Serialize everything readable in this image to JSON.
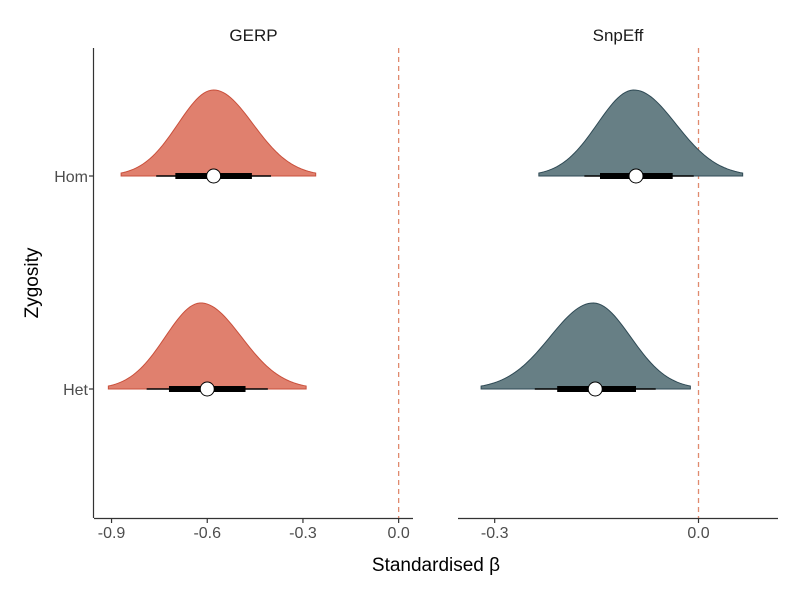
{
  "chart_data": {
    "type": "halfeye",
    "xlabel": "Standardised β",
    "ylabel": "Zygosity",
    "categories": [
      "Hom",
      "Het"
    ],
    "reference_line": {
      "x": 0.0,
      "style": "dashed",
      "color": "#e08a6e"
    },
    "grid": false,
    "legend": "none",
    "panels": [
      {
        "title": "GERP",
        "fill": "#e0806e",
        "stroke": "#c9503c",
        "xlim": [
          -0.955,
          0.045
        ],
        "xticks": [
          {
            "value": -0.9,
            "label": "-0.9"
          },
          {
            "value": -0.6,
            "label": "-0.6"
          },
          {
            "value": -0.3,
            "label": "-0.3"
          },
          {
            "value": 0.0,
            "label": "0.0"
          }
        ],
        "distributions": [
          {
            "category": "Hom",
            "median": -0.58,
            "interval_66": [
              -0.7,
              -0.46
            ],
            "interval_95": [
              -0.76,
              -0.4
            ],
            "range": [
              -0.87,
              -0.26
            ],
            "mode": -0.58
          },
          {
            "category": "Het",
            "median": -0.6,
            "interval_66": [
              -0.72,
              -0.48
            ],
            "interval_95": [
              -0.79,
              -0.41
            ],
            "range": [
              -0.91,
              -0.29
            ],
            "mode": -0.62
          }
        ]
      },
      {
        "title": "SnpEff",
        "fill": "#677f85",
        "stroke": "#2f4a55",
        "xlim": [
          -0.354,
          0.117
        ],
        "xticks": [
          {
            "value": -0.3,
            "label": "-0.3"
          },
          {
            "value": 0.0,
            "label": "0.0"
          }
        ],
        "distributions": [
          {
            "category": "Hom",
            "median": -0.092,
            "interval_66": [
              -0.145,
              -0.038
            ],
            "interval_95": [
              -0.168,
              -0.007
            ],
            "range": [
              -0.235,
              0.065
            ],
            "mode": -0.095
          },
          {
            "category": "Het",
            "median": -0.152,
            "interval_66": [
              -0.208,
              -0.092
            ],
            "interval_95": [
              -0.241,
              -0.063
            ],
            "range": [
              -0.32,
              -0.012
            ],
            "mode": -0.155
          }
        ]
      }
    ]
  }
}
